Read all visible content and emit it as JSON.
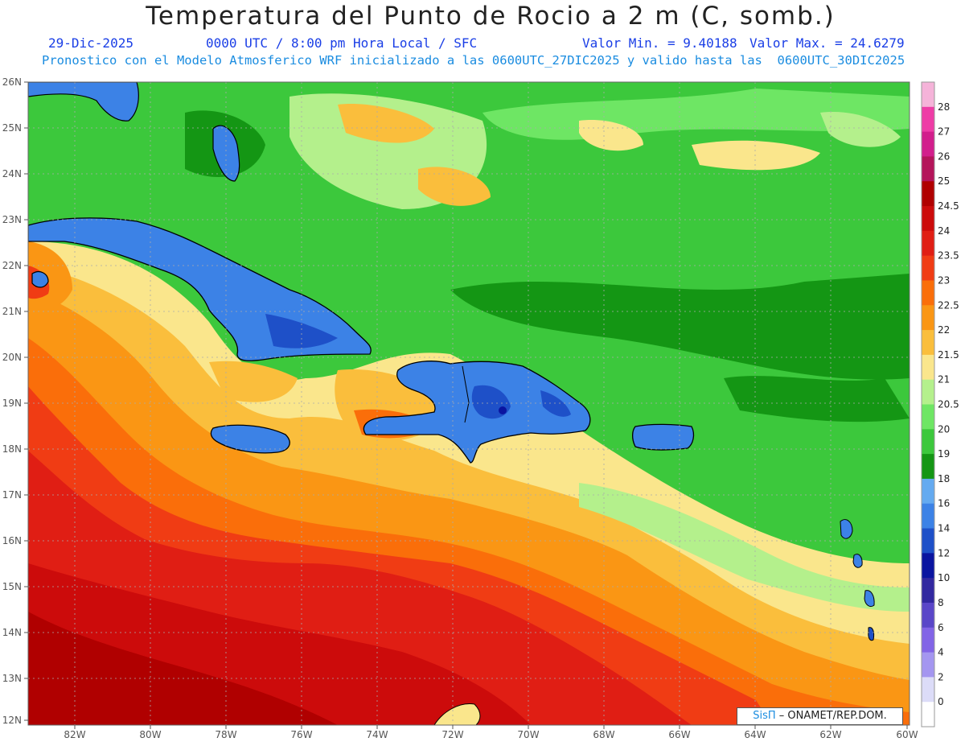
{
  "header": {
    "title": "Temperatura del Punto de Rocio a 2 m (C, somb.)",
    "date": "29-Dic-2025",
    "time": "0000 UTC / 8:00 pm Hora Local / SFC",
    "min_label": "Valor Min. = 9.40188",
    "max_label": "Valor Max. = 24.6279",
    "model_info": "Pronostico con el Modelo Atmosferico WRF inicializado a las 0600UTC_27DIC2025 y valido hasta las  0600UTC_30DIC2025"
  },
  "axes": {
    "lat_labels": [
      "26N",
      "25N",
      "24N",
      "23N",
      "22N",
      "21N",
      "20N",
      "19N",
      "18N",
      "17N",
      "16N",
      "15N",
      "14N",
      "13N",
      "12N"
    ],
    "lon_labels": [
      "82W",
      "80W",
      "78W",
      "76W",
      "74W",
      "72W",
      "70W",
      "68W",
      "66W",
      "64W",
      "62W",
      "60W"
    ]
  },
  "colorbar": {
    "levels": [
      "28",
      "27",
      "26",
      "25",
      "24.5",
      "24",
      "23.5",
      "23",
      "22.5",
      "22",
      "21.5",
      "21",
      "20.5",
      "20",
      "19",
      "18",
      "16",
      "14",
      "12",
      "10",
      "8",
      "6",
      "4",
      "2",
      "0"
    ],
    "colors": [
      "#f5b3d9",
      "#ee3ca6",
      "#d21e8c",
      "#b4145a",
      "#b00000",
      "#cc0b0b",
      "#e01e14",
      "#f03c14",
      "#fa6e0a",
      "#fa9614",
      "#fabe3c",
      "#fae68c",
      "#b4f08c",
      "#6ee664",
      "#3cc83c",
      "#149614",
      "#64aaf0",
      "#3c82e6",
      "#1e50c8",
      "#0a14a0",
      "#3228a0",
      "#5a46c8",
      "#8264e6",
      "#a496f0",
      "#dcdcf8",
      "#ffffff"
    ]
  },
  "credit": {
    "brand": "SisΠ",
    "text": "– ONAMET/REP.DOM."
  }
}
